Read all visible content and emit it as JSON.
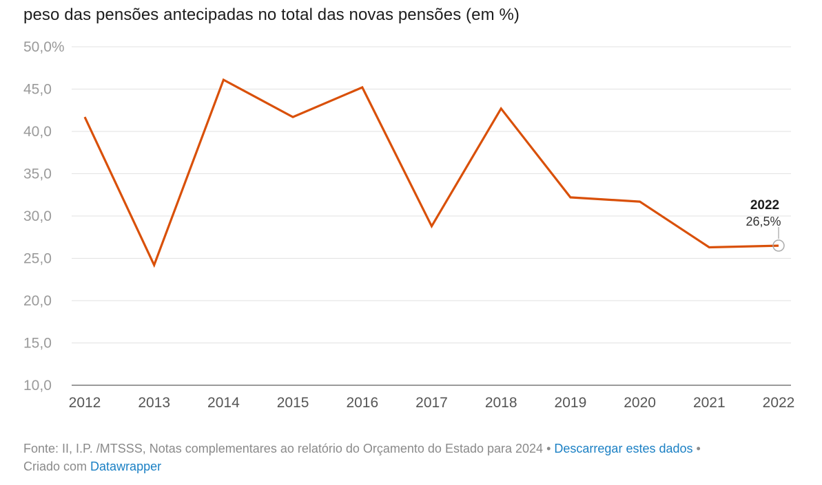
{
  "chart_data": {
    "type": "line",
    "title": "peso das pensões antecipadas no total das novas pensões (em %)",
    "x": [
      "2012",
      "2013",
      "2014",
      "2015",
      "2016",
      "2017",
      "2018",
      "2019",
      "2020",
      "2021",
      "2022"
    ],
    "series": [
      {
        "values": [
          41.7,
          24.2,
          46.1,
          41.7,
          45.2,
          28.8,
          42.7,
          32.2,
          31.7,
          26.3,
          26.5
        ]
      }
    ],
    "y_tick_labels": [
      "10,0",
      "15,0",
      "20,0",
      "25,0",
      "30,0",
      "35,0",
      "40,0",
      "45,0",
      "50,0%"
    ],
    "ylim": [
      10,
      50
    ],
    "grid": true,
    "line_color": "#d95009",
    "annotation": {
      "year": "2022",
      "value_label": "26,5%"
    }
  },
  "footer": {
    "source": "Fonte: II, I.P. /MTSSS, Notas complementares ao relatório do Orçamento do Estado para 2024",
    "separator": "•",
    "download_link": "Descarregar estes dados",
    "created_with": "Criado com",
    "tool_link": "Datawrapper"
  }
}
